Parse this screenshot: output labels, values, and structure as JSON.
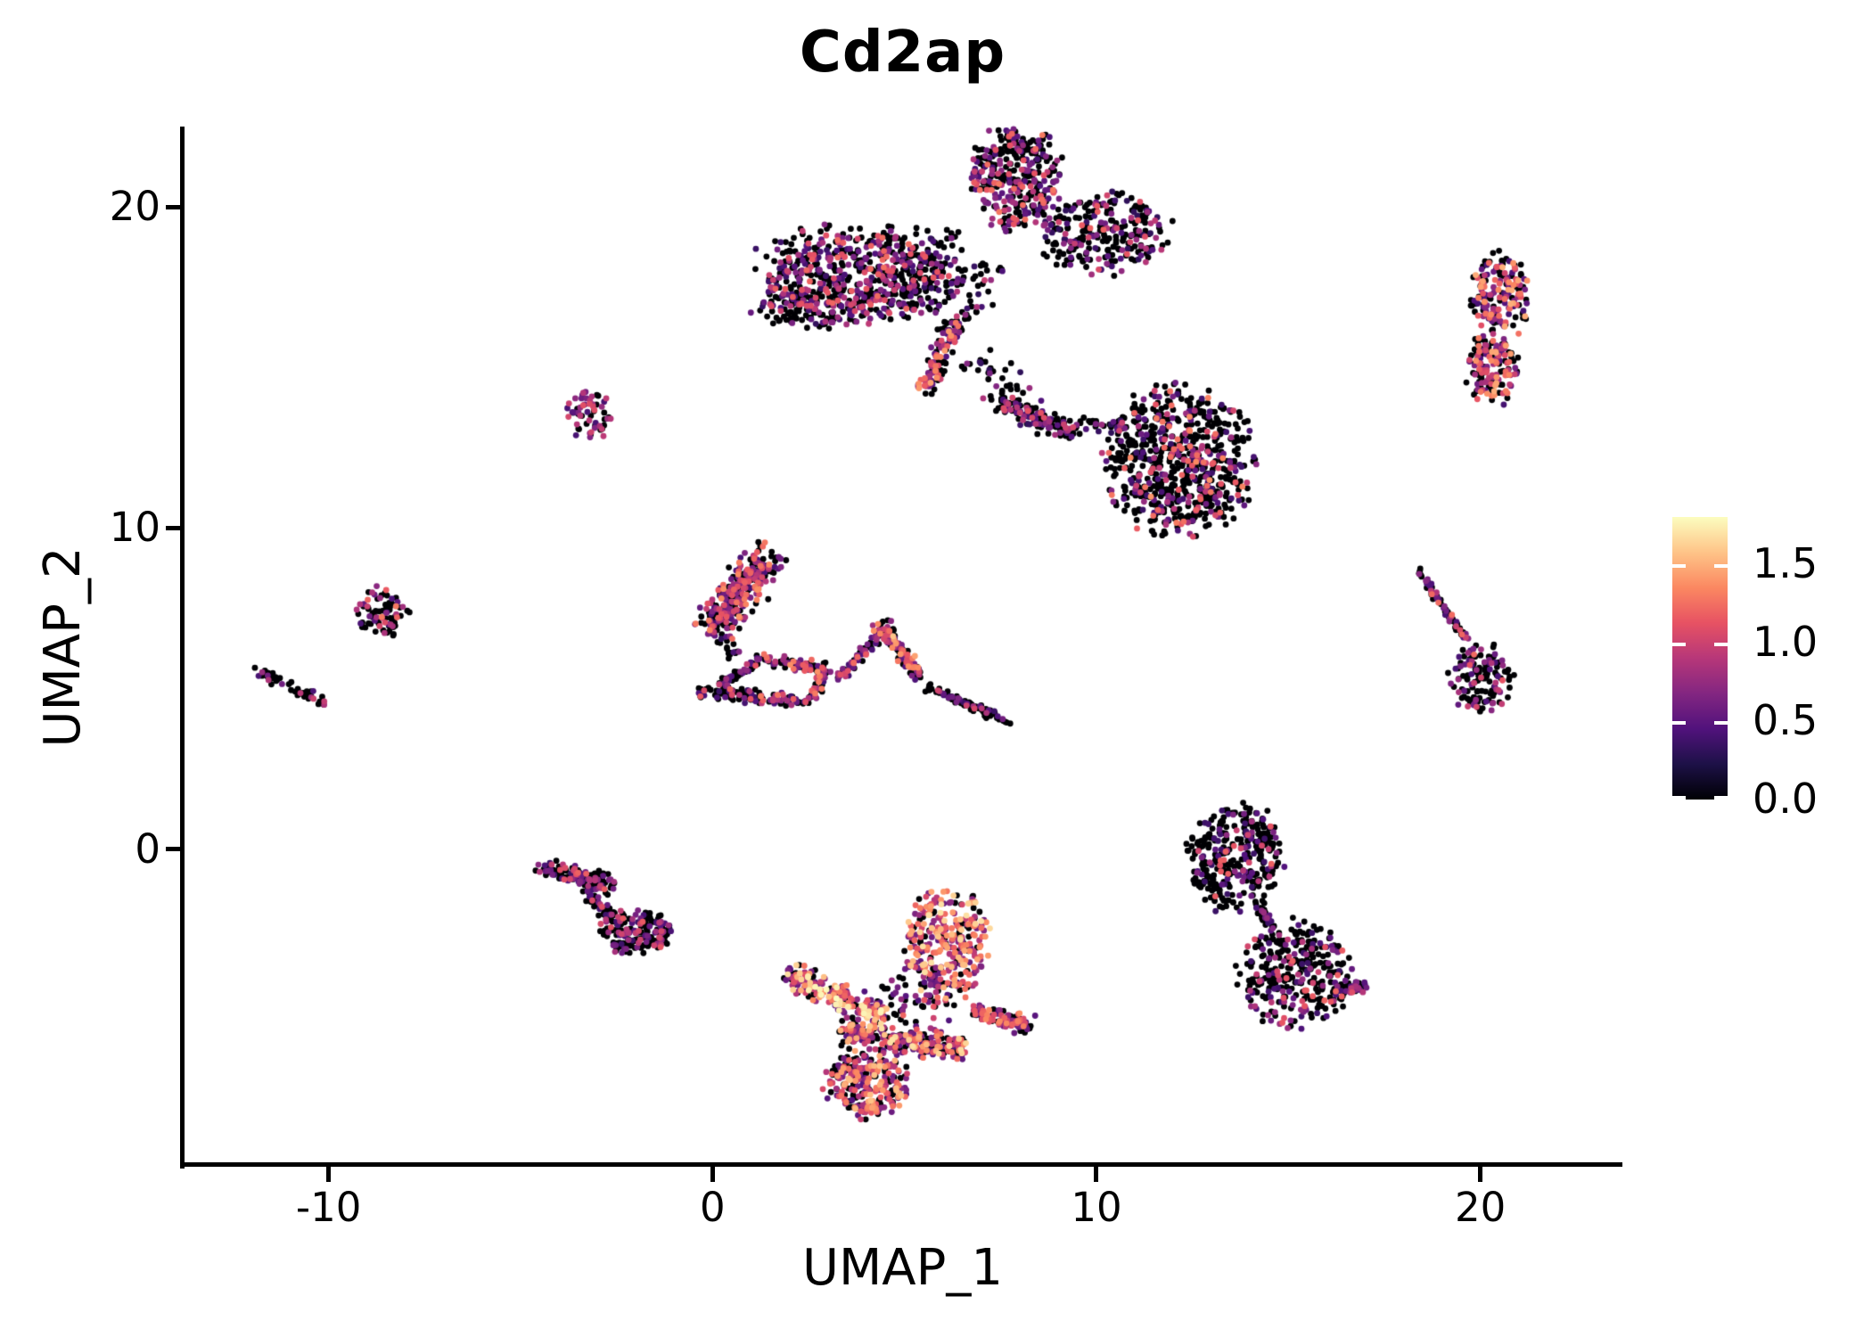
{
  "chart_data": {
    "type": "scatter",
    "title": "Cd2ap",
    "xlabel": "UMAP_1",
    "ylabel": "UMAP_2",
    "xlim": [
      -13.8,
      23.7
    ],
    "ylim": [
      -9.8,
      22.5
    ],
    "x_ticks": [
      -10,
      0,
      10,
      20
    ],
    "x_tick_labels": [
      "-10",
      "0",
      "10",
      "20"
    ],
    "y_ticks": [
      0,
      10,
      20
    ],
    "y_tick_labels": [
      "0",
      "10",
      "20"
    ],
    "grid": false,
    "legend_position": "right",
    "colorbar": {
      "vmin": 0.0,
      "vmax": 1.8,
      "ticks": [
        0.0,
        0.5,
        1.0,
        1.5
      ],
      "tick_labels": [
        "0.0",
        "0.5",
        "1.0",
        "1.5"
      ],
      "palette_name": "magma",
      "stops": [
        "#000004",
        "#1d1147",
        "#51127c",
        "#832681",
        "#b73779",
        "#e75263",
        "#fb8861",
        "#fec488",
        "#fcfdbf"
      ]
    },
    "point_color_zero": "#000004",
    "clusters": [
      {
        "name": "top-left-bar",
        "type": "blob",
        "cx": 3.6,
        "cy": 17.9,
        "rx": 2.45,
        "ry": 1.35,
        "n": 560,
        "expr": {
          "zero": 0.52,
          "lo": 0.35,
          "hi": 1.25,
          "pow": 1.6
        }
      },
      {
        "name": "top-left-bar-fringe",
        "type": "blob",
        "cx": 3.0,
        "cy": 16.8,
        "rx": 1.8,
        "ry": 0.55,
        "n": 120,
        "expr": {
          "zero": 0.6,
          "lo": 0.3,
          "hi": 1.1,
          "pow": 1.6
        }
      },
      {
        "name": "top-blob",
        "type": "blob",
        "cx": 7.9,
        "cy": 20.9,
        "rx": 1.1,
        "ry": 1.5,
        "n": 330,
        "expr": {
          "zero": 0.5,
          "lo": 0.4,
          "hi": 1.3,
          "pow": 1.5
        }
      },
      {
        "name": "top-mid-scatter",
        "type": "blob",
        "cx": 6.0,
        "cy": 17.8,
        "rx": 1.3,
        "ry": 1.6,
        "n": 130,
        "expr": {
          "zero": 0.75,
          "lo": 0.3,
          "hi": 1.0,
          "pow": 2.0
        }
      },
      {
        "name": "top-right-arm",
        "type": "blob",
        "cx": 10.2,
        "cy": 19.2,
        "rx": 1.6,
        "ry": 1.2,
        "n": 260,
        "expr": {
          "zero": 0.6,
          "lo": 0.3,
          "hi": 1.2,
          "pow": 1.8
        }
      },
      {
        "name": "top-tail",
        "type": "segment",
        "x1": 6.35,
        "y1": 16.5,
        "x2": 5.5,
        "y2": 14.3,
        "w": 0.38,
        "n": 110,
        "expr": {
          "zero": 0.35,
          "lo": 0.4,
          "hi": 1.5,
          "pow": 1.4
        }
      },
      {
        "name": "top-tail-scatter",
        "type": "segment",
        "x1": 6.8,
        "y1": 15.2,
        "x2": 8.7,
        "y2": 13.2,
        "w": 0.8,
        "n": 55,
        "expr": {
          "zero": 0.8,
          "lo": 0.3,
          "hi": 0.9,
          "pow": 2.0
        }
      },
      {
        "name": "topright-sausage-upper",
        "type": "blob",
        "cx": 20.5,
        "cy": 17.2,
        "rx": 0.7,
        "ry": 1.2,
        "n": 170,
        "expr": {
          "zero": 0.35,
          "lo": 0.4,
          "hi": 1.5,
          "pow": 1.3
        }
      },
      {
        "name": "topright-sausage-lower",
        "type": "blob",
        "cx": 20.3,
        "cy": 15.0,
        "rx": 0.65,
        "ry": 1.1,
        "n": 150,
        "expr": {
          "zero": 0.35,
          "lo": 0.4,
          "hi": 1.5,
          "pow": 1.3
        }
      },
      {
        "name": "midright-main",
        "type": "blob",
        "cx": 12.2,
        "cy": 12.1,
        "rx": 1.75,
        "ry": 2.15,
        "n": 700,
        "expr": {
          "zero": 0.68,
          "lo": 0.35,
          "hi": 1.4,
          "pow": 1.8
        }
      },
      {
        "name": "midright-arm",
        "type": "segment",
        "x1": 7.5,
        "y1": 13.9,
        "x2": 9.5,
        "y2": 12.9,
        "w": 0.4,
        "n": 120,
        "expr": {
          "zero": 0.55,
          "lo": 0.4,
          "hi": 1.2,
          "pow": 1.5
        }
      },
      {
        "name": "midright-bridge",
        "type": "segment",
        "x1": 9.6,
        "y1": 13.3,
        "x2": 10.8,
        "y2": 13.2,
        "w": 0.3,
        "n": 30,
        "expr": {
          "zero": 0.7,
          "lo": 0.3,
          "hi": 1.0,
          "pow": 2.0
        }
      },
      {
        "name": "small-hook",
        "type": "blob",
        "cx": -3.2,
        "cy": 13.5,
        "rx": 0.55,
        "ry": 0.7,
        "n": 60,
        "expr": {
          "zero": 0.4,
          "lo": 0.4,
          "hi": 1.1,
          "pow": 1.2
        }
      },
      {
        "name": "left-blob",
        "type": "blob",
        "cx": -8.6,
        "cy": 7.4,
        "rx": 0.65,
        "ry": 0.7,
        "n": 80,
        "expr": {
          "zero": 0.55,
          "lo": 0.4,
          "hi": 1.3,
          "pow": 1.5
        }
      },
      {
        "name": "farleft-streak",
        "type": "segment",
        "x1": -11.9,
        "y1": 5.6,
        "x2": -10.0,
        "y2": 4.5,
        "w": 0.22,
        "n": 50,
        "expr": {
          "zero": 0.6,
          "lo": 0.4,
          "hi": 1.2,
          "pow": 1.5
        }
      },
      {
        "name": "center-six",
        "type": "segment",
        "x1": -0.05,
        "y1": 6.9,
        "x2": 1.45,
        "y2": 9.1,
        "w": 0.85,
        "n": 300,
        "expr": {
          "zero": 0.38,
          "lo": 0.4,
          "hi": 1.4,
          "pow": 1.4
        }
      },
      {
        "name": "center-six-tail",
        "type": "segment",
        "x1": 0.2,
        "y1": 6.6,
        "x2": 0.6,
        "y2": 6.0,
        "w": 0.3,
        "n": 18,
        "expr": {
          "zero": 0.7,
          "lo": 0.3,
          "hi": 0.9,
          "pow": 2.0
        }
      },
      {
        "name": "loop-bottom",
        "type": "segment",
        "x1": -0.35,
        "y1": 4.9,
        "x2": 2.55,
        "y2": 4.6,
        "w": 0.28,
        "n": 110,
        "expr": {
          "zero": 0.5,
          "lo": 0.35,
          "hi": 1.3,
          "pow": 1.5
        }
      },
      {
        "name": "loop-left-diag",
        "type": "segment",
        "x1": 0.15,
        "y1": 5.05,
        "x2": 1.35,
        "y2": 5.95,
        "w": 0.22,
        "n": 55,
        "expr": {
          "zero": 0.6,
          "lo": 0.35,
          "hi": 1.2,
          "pow": 1.6
        }
      },
      {
        "name": "loop-top",
        "type": "segment",
        "x1": 1.35,
        "y1": 5.95,
        "x2": 2.95,
        "y2": 5.55,
        "w": 0.25,
        "n": 75,
        "expr": {
          "zero": 0.45,
          "lo": 0.4,
          "hi": 1.4,
          "pow": 1.4
        }
      },
      {
        "name": "loop-right-drop",
        "type": "segment",
        "x1": 2.95,
        "y1": 5.55,
        "x2": 2.6,
        "y2": 4.7,
        "w": 0.25,
        "n": 50,
        "expr": {
          "zero": 0.5,
          "lo": 0.4,
          "hi": 1.3,
          "pow": 1.5
        }
      },
      {
        "name": "v-left-branch",
        "type": "segment",
        "x1": 3.25,
        "y1": 5.3,
        "x2": 4.4,
        "y2": 6.75,
        "w": 0.2,
        "n": 70,
        "expr": {
          "zero": 0.45,
          "lo": 0.4,
          "hi": 1.3,
          "pow": 1.4
        }
      },
      {
        "name": "v-peak",
        "type": "blob",
        "cx": 4.5,
        "cy": 6.8,
        "rx": 0.3,
        "ry": 0.35,
        "n": 35,
        "expr": {
          "zero": 0.4,
          "lo": 0.5,
          "hi": 1.6,
          "pow": 1.3
        }
      },
      {
        "name": "v-right-upper",
        "type": "segment",
        "x1": 4.6,
        "y1": 6.6,
        "x2": 5.4,
        "y2": 5.4,
        "w": 0.3,
        "n": 90,
        "expr": {
          "zero": 0.4,
          "lo": 0.4,
          "hi": 1.5,
          "pow": 1.4
        }
      },
      {
        "name": "v-right-tail",
        "type": "segment",
        "x1": 5.5,
        "y1": 5.1,
        "x2": 7.75,
        "y2": 3.95,
        "w": 0.18,
        "n": 90,
        "expr": {
          "zero": 0.75,
          "lo": 0.35,
          "hi": 1.1,
          "pow": 1.8
        }
      },
      {
        "name": "z-top-bar",
        "type": "segment",
        "x1": -4.5,
        "y1": -0.55,
        "x2": -2.6,
        "y2": -1.15,
        "w": 0.4,
        "n": 140,
        "expr": {
          "zero": 0.65,
          "lo": 0.35,
          "hi": 1.2,
          "pow": 1.7
        }
      },
      {
        "name": "z-diag",
        "type": "segment",
        "x1": -3.35,
        "y1": -1.35,
        "x2": -2.6,
        "y2": -2.1,
        "w": 0.3,
        "n": 45,
        "expr": {
          "zero": 0.7,
          "lo": 0.35,
          "hi": 1.1,
          "pow": 1.8
        }
      },
      {
        "name": "z-bottom-blob",
        "type": "blob",
        "cx": -2.0,
        "cy": -2.6,
        "rx": 0.85,
        "ry": 0.65,
        "n": 170,
        "expr": {
          "zero": 0.6,
          "lo": 0.35,
          "hi": 1.2,
          "pow": 1.6
        }
      },
      {
        "name": "warm-top-lobe",
        "type": "blob",
        "cx": 6.1,
        "cy": -2.9,
        "rx": 1.05,
        "ry": 1.55,
        "n": 310,
        "expr": {
          "zero": 0.22,
          "lo": 0.5,
          "hi": 1.7,
          "pow": 1.1
        }
      },
      {
        "name": "warm-left-arm",
        "type": "segment",
        "x1": 2.0,
        "y1": -3.9,
        "x2": 4.4,
        "y2": -5.3,
        "w": 0.55,
        "n": 210,
        "expr": {
          "zero": 0.25,
          "lo": 0.5,
          "hi": 1.8,
          "pow": 1.0
        }
      },
      {
        "name": "warm-mid-band",
        "type": "segment",
        "x1": 3.4,
        "y1": -5.7,
        "x2": 6.6,
        "y2": -6.2,
        "w": 0.55,
        "n": 260,
        "expr": {
          "zero": 0.3,
          "lo": 0.45,
          "hi": 1.7,
          "pow": 1.2
        }
      },
      {
        "name": "warm-bottom-lobe",
        "type": "blob",
        "cx": 4.05,
        "cy": -7.3,
        "rx": 1.0,
        "ry": 0.95,
        "n": 290,
        "expr": {
          "zero": 0.35,
          "lo": 0.45,
          "hi": 1.6,
          "pow": 1.2
        }
      },
      {
        "name": "warm-right-arm",
        "type": "segment",
        "x1": 6.8,
        "y1": -5.0,
        "x2": 8.25,
        "y2": -5.5,
        "w": 0.35,
        "n": 120,
        "expr": {
          "zero": 0.35,
          "lo": 0.4,
          "hi": 1.4,
          "pow": 1.3
        }
      },
      {
        "name": "warm-scatter",
        "type": "blob",
        "cx": 5.3,
        "cy": -4.6,
        "rx": 1.3,
        "ry": 0.8,
        "n": 70,
        "expr": {
          "zero": 0.5,
          "lo": 0.4,
          "hi": 1.3,
          "pow": 1.5
        }
      },
      {
        "name": "s-top-lobe",
        "type": "blob",
        "cx": 13.6,
        "cy": -0.2,
        "rx": 1.15,
        "ry": 1.55,
        "n": 330,
        "expr": {
          "zero": 0.72,
          "lo": 0.35,
          "hi": 1.2,
          "pow": 1.8
        }
      },
      {
        "name": "s-neck",
        "type": "segment",
        "x1": 14.25,
        "y1": -1.8,
        "x2": 14.6,
        "y2": -2.5,
        "w": 0.2,
        "n": 35,
        "expr": {
          "zero": 0.6,
          "lo": 0.35,
          "hi": 1.0,
          "pow": 1.6
        }
      },
      {
        "name": "s-bottom-lobe",
        "type": "blob",
        "cx": 15.2,
        "cy": -3.9,
        "rx": 1.35,
        "ry": 1.5,
        "n": 330,
        "expr": {
          "zero": 0.68,
          "lo": 0.35,
          "hi": 1.2,
          "pow": 1.6
        }
      },
      {
        "name": "s-tail",
        "type": "segment",
        "x1": 16.2,
        "y1": -4.4,
        "x2": 17.0,
        "y2": -4.3,
        "w": 0.25,
        "n": 40,
        "expr": {
          "zero": 0.5,
          "lo": 0.4,
          "hi": 1.2,
          "pow": 1.5
        }
      },
      {
        "name": "right-streak",
        "type": "segment",
        "x1": 18.35,
        "y1": 8.7,
        "x2": 19.65,
        "y2": 6.5,
        "w": 0.15,
        "n": 70,
        "expr": {
          "zero": 0.62,
          "lo": 0.4,
          "hi": 1.3,
          "pow": 1.5
        }
      },
      {
        "name": "right-blob",
        "type": "blob",
        "cx": 20.0,
        "cy": 5.3,
        "rx": 0.8,
        "ry": 1.05,
        "n": 140,
        "expr": {
          "zero": 0.6,
          "lo": 0.4,
          "hi": 1.3,
          "pow": 1.5
        }
      }
    ]
  }
}
